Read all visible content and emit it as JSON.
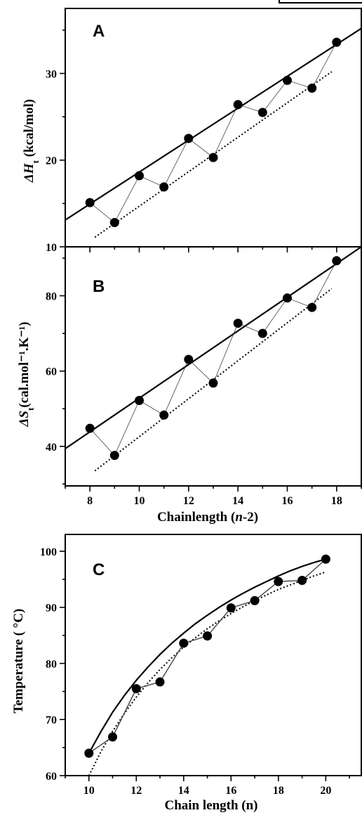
{
  "chart_data": [
    {
      "type": "scatter",
      "panel_label": "A",
      "ylabel": {
        "main": "ΔH",
        "sub": "t",
        "rest": " (kcal/mol)"
      },
      "xlim": [
        7,
        19
      ],
      "ylim": [
        10,
        37.5
      ],
      "yticks": [
        10,
        20,
        30
      ],
      "x": [
        8,
        9,
        10,
        11,
        12,
        13,
        14,
        15,
        16,
        17,
        18
      ],
      "y": [
        15.1,
        12.8,
        18.2,
        16.9,
        22.5,
        20.3,
        26.4,
        25.5,
        29.2,
        28.3,
        33.6
      ],
      "fit_upper": {
        "x": [
          7,
          19
        ],
        "y": [
          13.1,
          35.2
        ]
      },
      "fit_lower": {
        "x": [
          8.2,
          17.8
        ],
        "y": [
          11.1,
          30.2
        ]
      },
      "grid": false
    },
    {
      "type": "scatter",
      "panel_label": "B",
      "ylabel": {
        "main": "ΔS",
        "sub": "t",
        "rest": "(cal.mol⁻¹.K⁻¹)"
      },
      "xlabel": {
        "pre": "Chainlength (",
        "italic": "n",
        "post": "-2)"
      },
      "xlim": [
        7,
        19
      ],
      "ylim": [
        29.5,
        93
      ],
      "yticks": [
        40,
        60,
        80
      ],
      "xticks": [
        8,
        10,
        12,
        14,
        16,
        18
      ],
      "x": [
        8,
        9,
        10,
        11,
        12,
        13,
        14,
        15,
        16,
        17,
        18
      ],
      "y": [
        44.8,
        37.6,
        52.2,
        48.3,
        63.1,
        56.8,
        72.7,
        70.0,
        79.4,
        76.9,
        89.3
      ],
      "fit_upper": {
        "x": [
          7,
          19
        ],
        "y": [
          39.4,
          93.0
        ]
      },
      "fit_lower": {
        "x": [
          8.2,
          17.8
        ],
        "y": [
          33.5,
          81.9
        ]
      },
      "grid": false
    },
    {
      "type": "scatter",
      "panel_label": "C",
      "ylabel": "Temperature ( °C)",
      "xlabel": "Chain length (n)",
      "xlim": [
        9,
        21.5
      ],
      "ylim": [
        60,
        103
      ],
      "yticks": [
        60,
        70,
        80,
        90,
        100
      ],
      "xticks": [
        10,
        12,
        14,
        16,
        18,
        20
      ],
      "x": [
        10,
        11,
        12,
        13,
        14,
        15,
        16,
        17,
        18,
        19,
        20
      ],
      "y": [
        64.0,
        66.9,
        75.5,
        76.7,
        83.6,
        84.9,
        89.9,
        91.2,
        94.6,
        94.8,
        98.6
      ],
      "fit_upper": {
        "x": [
          10,
          10.5,
          11,
          11.5,
          12,
          12.5,
          13,
          13.5,
          14,
          14.5,
          15,
          15.5,
          16,
          16.5,
          17,
          17.5,
          18,
          18.5,
          19,
          19.5,
          20
        ],
        "y": [
          64.0,
          67.8,
          71.3,
          74.3,
          77.0,
          79.4,
          81.6,
          83.6,
          85.4,
          87.1,
          88.6,
          90.0,
          91.3,
          92.5,
          93.6,
          94.6,
          95.6,
          96.5,
          97.3,
          98.0,
          98.6
        ]
      },
      "fit_lower": {
        "x": [
          10,
          10.5,
          11,
          11.5,
          12,
          12.5,
          13,
          13.5,
          14,
          14.5,
          15,
          15.5,
          16,
          16.5,
          17,
          17.5,
          18,
          18.5,
          19,
          19.5,
          20
        ],
        "y": [
          60.0,
          64.2,
          67.9,
          71.1,
          74.0,
          76.6,
          78.9,
          81.0,
          82.9,
          84.6,
          86.2,
          87.6,
          88.9,
          90.1,
          91.2,
          92.2,
          93.2,
          94.0,
          94.8,
          95.6,
          96.3
        ]
      },
      "grid": false
    }
  ]
}
